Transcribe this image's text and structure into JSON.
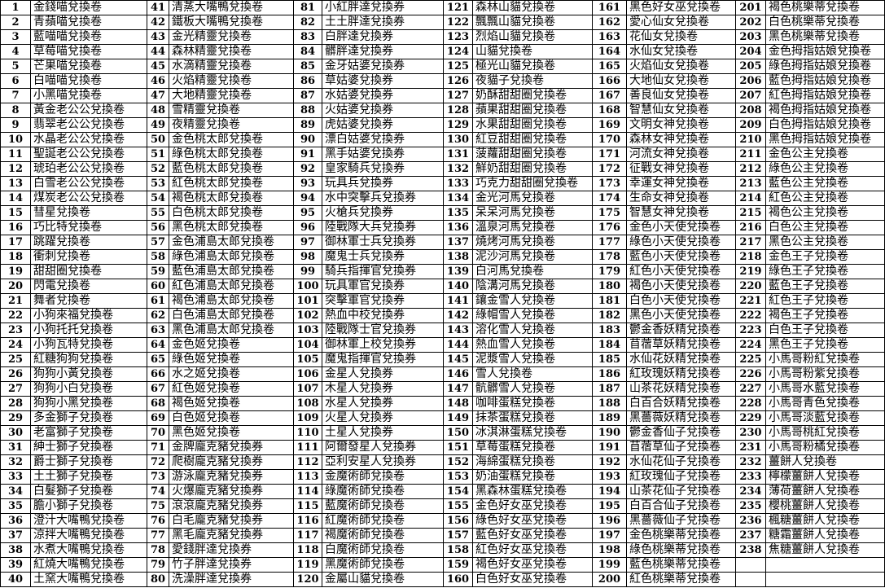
{
  "sheet": {
    "rows_per_block": 40,
    "blocks": 6,
    "items": [
      [
        "1",
        "金錢喵兌換卷"
      ],
      [
        "2",
        "青蘋喵兌換卷"
      ],
      [
        "3",
        "藍喵喵兌換卷"
      ],
      [
        "4",
        "草莓喵兌換卷"
      ],
      [
        "5",
        "芒果喵兌換卷"
      ],
      [
        "6",
        "白喵喵兌換卷"
      ],
      [
        "7",
        "小黑喵兌換卷"
      ],
      [
        "8",
        "黃金老公公兌換卷"
      ],
      [
        "9",
        "翡翠老公公兌換卷"
      ],
      [
        "10",
        "水晶老公公兌換卷"
      ],
      [
        "11",
        "聖誕老公公兌換卷"
      ],
      [
        "12",
        "琥珀老公公兌換卷"
      ],
      [
        "13",
        "白雪老公公兌換卷"
      ],
      [
        "14",
        "煤炭老公公兌換卷"
      ],
      [
        "15",
        "彗星兌換卷"
      ],
      [
        "16",
        "巧比特兌換卷"
      ],
      [
        "17",
        "跳躍兌換卷"
      ],
      [
        "18",
        "衝刺兌換卷"
      ],
      [
        "19",
        "甜甜圈兌換卷"
      ],
      [
        "20",
        "閃電兌換卷"
      ],
      [
        "21",
        "舞者兌換卷"
      ],
      [
        "22",
        "小狗來福兌換卷"
      ],
      [
        "23",
        "小狗托托兌換卷"
      ],
      [
        "24",
        "小狗瓦特兌換卷"
      ],
      [
        "25",
        "紅糖狗狗兌換卷"
      ],
      [
        "26",
        "狗狗小黃兌換卷"
      ],
      [
        "27",
        "狗狗小白兌換卷"
      ],
      [
        "28",
        "狗狗小黑兌換卷"
      ],
      [
        "29",
        "多金獅子兌換卷"
      ],
      [
        "30",
        "老富獅子兌換卷"
      ],
      [
        "31",
        "紳士獅子兌換卷"
      ],
      [
        "32",
        "爵士獅子兌換卷"
      ],
      [
        "33",
        "土土獅子兌換卷"
      ],
      [
        "34",
        "白髮獅子兌換卷"
      ],
      [
        "35",
        "膽小獅子兌換卷"
      ],
      [
        "36",
        "澄汁大嘴鴨兌換卷"
      ],
      [
        "37",
        "涼拌大嘴鴨兌換卷"
      ],
      [
        "38",
        "水煮大嘴鴨兌換卷"
      ],
      [
        "39",
        "紅燒大嘴鴨兌換卷"
      ],
      [
        "40",
        "土窯大嘴鴨兌換卷"
      ],
      [
        "41",
        "清蒸大嘴鴨兌換卷"
      ],
      [
        "42",
        "鐵板大嘴鴨兌換卷"
      ],
      [
        "43",
        "金光精靈兌換卷"
      ],
      [
        "44",
        "森林精靈兌換卷"
      ],
      [
        "45",
        "水滴精靈兌換卷"
      ],
      [
        "46",
        "火焰精靈兌換卷"
      ],
      [
        "47",
        "大地精靈兌換卷"
      ],
      [
        "48",
        "雪精靈兌換卷"
      ],
      [
        "49",
        "夜精靈兌換卷"
      ],
      [
        "50",
        "金色桃太郎兌換卷"
      ],
      [
        "51",
        "綠色桃太郎兌換卷"
      ],
      [
        "52",
        "藍色桃太郎兌換卷"
      ],
      [
        "53",
        "紅色桃太郎兌換卷"
      ],
      [
        "54",
        "褐色桃太郎兌換卷"
      ],
      [
        "55",
        "白色桃太郎兌換卷"
      ],
      [
        "56",
        "黑色桃太郎兌換卷"
      ],
      [
        "57",
        "金色浦島太郎兌換卷"
      ],
      [
        "58",
        "綠色浦島太郎兌換卷"
      ],
      [
        "59",
        "藍色浦島太郎兌換卷"
      ],
      [
        "60",
        "紅色浦島太郎兌換卷"
      ],
      [
        "61",
        "褐色浦島太郎兌換卷"
      ],
      [
        "62",
        "白色浦島太郎兌換卷"
      ],
      [
        "63",
        "黑色浦島太郎兌換卷"
      ],
      [
        "64",
        "金色姬兌換卷"
      ],
      [
        "65",
        "綠色姬兌換卷"
      ],
      [
        "66",
        "水之姬兌換卷"
      ],
      [
        "67",
        "紅色姬兌換卷"
      ],
      [
        "68",
        "褐色姬兌換卷"
      ],
      [
        "69",
        "白色姬兌換卷"
      ],
      [
        "70",
        "黑色姬兌換卷"
      ],
      [
        "71",
        "金牌龐克豬兌換券"
      ],
      [
        "72",
        "爬樹龐克豬兌換券"
      ],
      [
        "73",
        "游泳龐克豬兌換券"
      ],
      [
        "74",
        "火爆龐克豬兌換券"
      ],
      [
        "75",
        "滾滾龐克豬兌換券"
      ],
      [
        "76",
        "白毛龐克豬兌換券"
      ],
      [
        "77",
        "黑毛龐克豬兌換券"
      ],
      [
        "78",
        "愛錢胖達兌換券"
      ],
      [
        "79",
        "竹子胖達兌換券"
      ],
      [
        "80",
        "洗澡胖達兌換券"
      ],
      [
        "81",
        "小紅胖達兌換券"
      ],
      [
        "82",
        "土土胖達兌換券"
      ],
      [
        "83",
        "白胖達兌換券"
      ],
      [
        "84",
        "髒胖達兌換券"
      ],
      [
        "85",
        "金牙姑婆兌換券"
      ],
      [
        "86",
        "草姑婆兌換券"
      ],
      [
        "87",
        "水姑婆兌換券"
      ],
      [
        "88",
        "火姑婆兌換券"
      ],
      [
        "89",
        "虎姑婆兌換券"
      ],
      [
        "90",
        "漂白姑婆兌換券"
      ],
      [
        "91",
        "黑手姑婆兌換券"
      ],
      [
        "92",
        "皇家騎兵兌換券"
      ],
      [
        "93",
        "玩具兵兌換券"
      ],
      [
        "94",
        "水中突擊兵兌換券"
      ],
      [
        "95",
        "火槍兵兌換券"
      ],
      [
        "96",
        "陸戰隊大兵兌換券"
      ],
      [
        "97",
        "御林軍士兵兌換券"
      ],
      [
        "98",
        "魔鬼士兵兌換券"
      ],
      [
        "99",
        "騎兵指揮官兌換券"
      ],
      [
        "100",
        "玩具軍官兌換券"
      ],
      [
        "101",
        "突擊軍官兌換券"
      ],
      [
        "102",
        "熱血中校兌換券"
      ],
      [
        "103",
        "陸戰隊士官兌換券"
      ],
      [
        "104",
        "御林軍上校兌換券"
      ],
      [
        "105",
        "魔鬼指揮官兌換券"
      ],
      [
        "106",
        "金星人兌換券"
      ],
      [
        "107",
        "木星人兌換券"
      ],
      [
        "108",
        "水星人兌換券"
      ],
      [
        "109",
        "火星人兌換券"
      ],
      [
        "110",
        "土星人兌換券"
      ],
      [
        "111",
        "阿爾發星人兌換券"
      ],
      [
        "112",
        "亞利安星人兌換券"
      ],
      [
        "113",
        "金魔術師兌換卷"
      ],
      [
        "114",
        "綠魔術師兌換卷"
      ],
      [
        "115",
        "藍魔術師兌換卷"
      ],
      [
        "116",
        "紅魔術師兌換卷"
      ],
      [
        "117",
        "褐魔術師兌換卷"
      ],
      [
        "118",
        "白魔術師兌換卷"
      ],
      [
        "119",
        "黑魔術師兌換卷"
      ],
      [
        "120",
        "金屬山貓兌換卷"
      ],
      [
        "121",
        "森林山貓兌換卷"
      ],
      [
        "122",
        "飄飄山貓兌換卷"
      ],
      [
        "123",
        "烈焰山貓兌換卷"
      ],
      [
        "124",
        "山貓兌換卷"
      ],
      [
        "125",
        "極光山貓兌換卷"
      ],
      [
        "126",
        "夜貓子兌換卷"
      ],
      [
        "127",
        "奶酥甜甜圈兌換卷"
      ],
      [
        "128",
        "蘋果甜甜圈兌換卷"
      ],
      [
        "129",
        "水果甜甜圈兌換卷"
      ],
      [
        "130",
        "紅豆甜甜圈兌換卷"
      ],
      [
        "131",
        "菠蘿甜甜圈兌換卷"
      ],
      [
        "132",
        "鮮奶甜甜圈兌換卷"
      ],
      [
        "133",
        "巧克力甜甜圈兌換卷"
      ],
      [
        "134",
        "金光河馬兌換卷"
      ],
      [
        "135",
        "呆呆河馬兌換卷"
      ],
      [
        "136",
        "溫泉河馬兌換卷"
      ],
      [
        "137",
        "燒烤河馬兌換卷"
      ],
      [
        "138",
        "泥沙河馬兌換卷"
      ],
      [
        "139",
        "白河馬兌換卷"
      ],
      [
        "140",
        "陰溝河馬兌換卷"
      ],
      [
        "141",
        "鑲金雪人兌換卷"
      ],
      [
        "142",
        "綠帽雪人兌換卷"
      ],
      [
        "143",
        "溶化雪人兌換卷"
      ],
      [
        "144",
        "熱血雪人兌換卷"
      ],
      [
        "145",
        "泥漿雪人兌換卷"
      ],
      [
        "146",
        "雪人兌換卷"
      ],
      [
        "147",
        "骯髒雪人兌換卷"
      ],
      [
        "148",
        "咖啡蛋糕兌換卷"
      ],
      [
        "149",
        "抹茶蛋糕兌換卷"
      ],
      [
        "150",
        "冰淇淋蛋糕兌換卷"
      ],
      [
        "151",
        "草莓蛋糕兌換卷"
      ],
      [
        "152",
        "海綿蛋糕兌換卷"
      ],
      [
        "153",
        "奶油蛋糕兌換卷"
      ],
      [
        "154",
        "黑森林蛋糕兌換卷"
      ],
      [
        "155",
        "金色好女巫兌換卷"
      ],
      [
        "156",
        "綠色好女巫兌換卷"
      ],
      [
        "157",
        "藍色好女巫兌換卷"
      ],
      [
        "158",
        "紅色好女巫兌換卷"
      ],
      [
        "159",
        "褐色好女巫兌換卷"
      ],
      [
        "160",
        "白色好女巫兌換卷"
      ],
      [
        "161",
        "黑色好女巫兌換卷"
      ],
      [
        "162",
        "愛心仙女兌換卷"
      ],
      [
        "163",
        "花仙女兌換卷"
      ],
      [
        "164",
        "水仙女兌換卷"
      ],
      [
        "165",
        "火焰仙女兌換卷"
      ],
      [
        "166",
        "大地仙女兌換卷"
      ],
      [
        "167",
        "善良仙女兌換卷"
      ],
      [
        "168",
        "智慧仙女兌換卷"
      ],
      [
        "169",
        "文明女神兌換卷"
      ],
      [
        "170",
        "森林女神兌換卷"
      ],
      [
        "171",
        "河流女神兌換卷"
      ],
      [
        "172",
        "征戰女神兌換卷"
      ],
      [
        "173",
        "幸運女神兌換卷"
      ],
      [
        "174",
        "生命女神兌換卷"
      ],
      [
        "175",
        "智慧女神兌換卷"
      ],
      [
        "176",
        "金色小天使兌換卷"
      ],
      [
        "177",
        "綠色小天使兌換卷"
      ],
      [
        "178",
        "藍色小天使兌換卷"
      ],
      [
        "179",
        "紅色小天使兌換卷"
      ],
      [
        "180",
        "褐色小天使兌換卷"
      ],
      [
        "181",
        "白色小天使兌換卷"
      ],
      [
        "182",
        "黑色小天使兌換卷"
      ],
      [
        "183",
        "鬱金香妖精兌換卷"
      ],
      [
        "184",
        "苜蓿草妖精兌換卷"
      ],
      [
        "185",
        "水仙花妖精兌換卷"
      ],
      [
        "186",
        "紅玫瑰妖精兌換卷"
      ],
      [
        "187",
        "山茶花妖精兌換卷"
      ],
      [
        "188",
        "白百合妖精兌換卷"
      ],
      [
        "189",
        "黑薔薇妖精兌換卷"
      ],
      [
        "190",
        "鬱金香仙子兌換卷"
      ],
      [
        "191",
        "苜蓿草仙子兌換卷"
      ],
      [
        "192",
        "水仙花仙子兌換卷"
      ],
      [
        "193",
        "紅玫瑰仙子兌換卷"
      ],
      [
        "194",
        "山茶花仙子兌換卷"
      ],
      [
        "195",
        "白百合仙子兌換卷"
      ],
      [
        "196",
        "黑薔薇仙子兌換卷"
      ],
      [
        "197",
        "金色桃樂蒂兌換卷"
      ],
      [
        "198",
        "綠色桃樂蒂兌換卷"
      ],
      [
        "199",
        "藍色桃樂蒂兌換卷"
      ],
      [
        "200",
        "紅色桃樂蒂兌換卷"
      ],
      [
        "201",
        "褐色桃樂蒂兌換卷"
      ],
      [
        "202",
        "白色桃樂蒂兌換卷"
      ],
      [
        "203",
        "黑色桃樂蒂兌換卷"
      ],
      [
        "204",
        "金色拇指姑娘兌換卷"
      ],
      [
        "205",
        "綠色拇指姑娘兌換卷"
      ],
      [
        "206",
        "藍色拇指姑娘兌換卷"
      ],
      [
        "207",
        "紅色拇指姑娘兌換卷"
      ],
      [
        "208",
        "褐色拇指姑娘兌換卷"
      ],
      [
        "209",
        "白色拇指姑娘兌換卷"
      ],
      [
        "210",
        "黑色拇指姑娘兌換卷"
      ],
      [
        "211",
        "金色公主兌換卷"
      ],
      [
        "212",
        "綠色公主兌換卷"
      ],
      [
        "213",
        "藍色公主兌換卷"
      ],
      [
        "214",
        "紅色公主兌換卷"
      ],
      [
        "215",
        "褐色公主兌換卷"
      ],
      [
        "216",
        "白色公主兌換卷"
      ],
      [
        "217",
        "黑色公主兌換卷"
      ],
      [
        "218",
        "金色王子兌換卷"
      ],
      [
        "219",
        "綠色王子兌換卷"
      ],
      [
        "220",
        "藍色王子兌換卷"
      ],
      [
        "221",
        "紅色王子兌換卷"
      ],
      [
        "222",
        "褐色王子兌換卷"
      ],
      [
        "223",
        "白色王子兌換卷"
      ],
      [
        "224",
        "黑色王子兌換卷"
      ],
      [
        "225",
        "小馬哥粉紅兌換卷"
      ],
      [
        "226",
        "小馬哥粉紫兌換卷"
      ],
      [
        "227",
        "小馬哥水藍兌換卷"
      ],
      [
        "228",
        "小馬哥青色兌換卷"
      ],
      [
        "229",
        "小馬哥淡藍兌換卷"
      ],
      [
        "230",
        "小馬哥桃紅兌換卷"
      ],
      [
        "231",
        "小馬哥粉橘兌換卷"
      ],
      [
        "232",
        "薑餅人兌換卷"
      ],
      [
        "233",
        "檸檬薑餅人兌換卷"
      ],
      [
        "234",
        "薄荷薑餅人兌換卷"
      ],
      [
        "235",
        "櫻桃薑餅人兌換卷"
      ],
      [
        "236",
        "楓糖薑餅人兌換卷"
      ],
      [
        "237",
        "糖霜薑餅人兌換卷"
      ],
      [
        "238",
        "焦糖薑餅人兌換卷"
      ]
    ]
  }
}
